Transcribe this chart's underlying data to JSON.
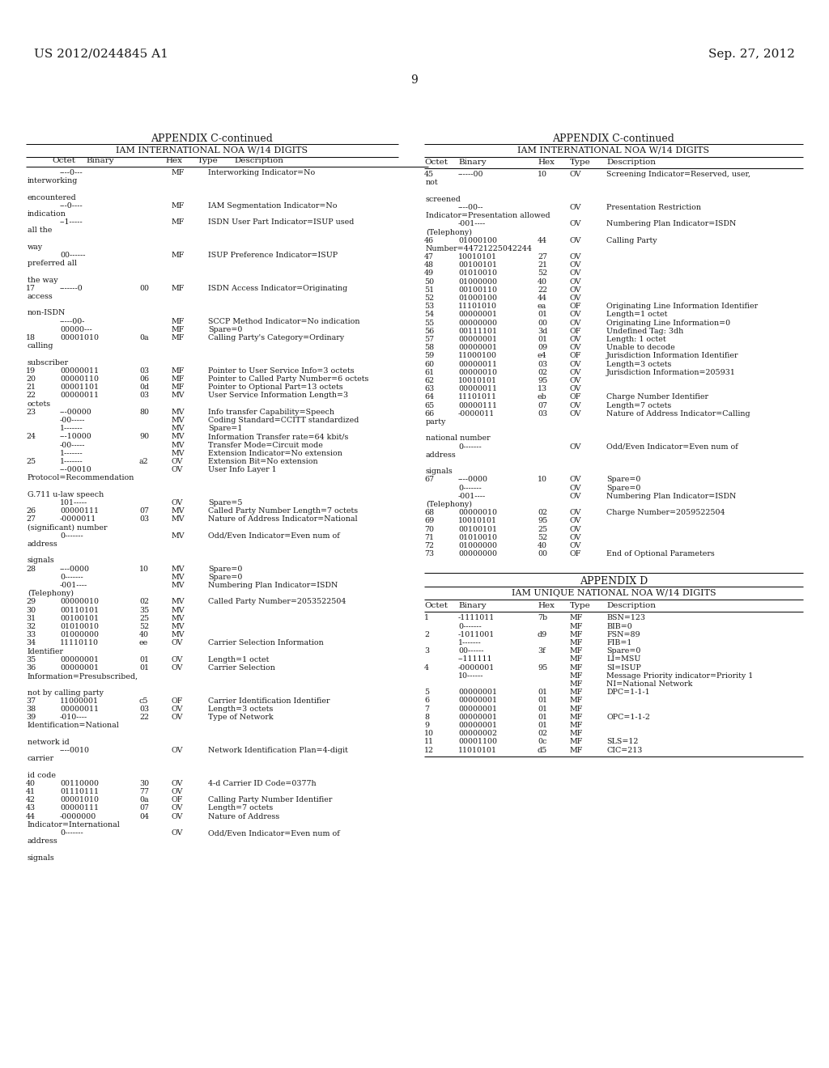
{
  "background_color": "#ffffff",
  "header_left": "US 2012/0244845 A1",
  "header_right": "Sep. 27, 2012",
  "page_number": "9",
  "left_title": "APPENDIX C-continued",
  "left_subtitle": "IAM INTERNATIONAL NOA W/14 DIGITS",
  "right_title": "APPENDIX C-continued",
  "right_subtitle": "IAM INTERNATIONAL NOA W/14 DIGITS",
  "bottom_title": "APPENDIX D",
  "bottom_subtitle": "IAM UNIQUE NATIONAL NOA W/14 DIGITS",
  "col_headers": [
    "Octet",
    "Binary",
    "Hex",
    "Type",
    "Description"
  ],
  "left_rows": [
    {
      "octet": "",
      "binary": "----0---",
      "hex": "",
      "type": "MF",
      "desc": "Interworking Indicator=No",
      "cont": "interworking"
    },
    {
      "octet": "",
      "binary": "",
      "hex": "",
      "type": "",
      "desc": "",
      "cont": "encountered"
    },
    {
      "octet": "",
      "binary": "---0----",
      "hex": "",
      "type": "MF",
      "desc": "IAM Segmentation Indicator=No",
      "cont": "indication"
    },
    {
      "octet": "",
      "binary": "--1-----",
      "hex": "",
      "type": "MF",
      "desc": "ISDN User Part Indicator=ISUP used",
      "cont": "all the"
    },
    {
      "octet": "",
      "binary": "",
      "hex": "",
      "type": "",
      "desc": "",
      "cont": "way"
    },
    {
      "octet": "",
      "binary": "00------",
      "hex": "",
      "type": "MF",
      "desc": "ISUP Preference Indicator=ISUP",
      "cont": "preferred all"
    },
    {
      "octet": "",
      "binary": "",
      "hex": "",
      "type": "",
      "desc": "",
      "cont": "the way"
    },
    {
      "octet": "17",
      "binary": "-------0",
      "hex": "00",
      "type": "MF",
      "desc": "ISDN Access Indicator=Originating",
      "cont": "access"
    },
    {
      "octet": "",
      "binary": "",
      "hex": "",
      "type": "",
      "desc": "",
      "cont": "non-ISDN"
    },
    {
      "octet": "",
      "binary": "-----00-",
      "hex": "",
      "type": "MF",
      "desc": "SCCP Method Indicator=No indication",
      "cont": ""
    },
    {
      "octet": "",
      "binary": "00000---",
      "hex": "",
      "type": "MF",
      "desc": "Spare=0",
      "cont": ""
    },
    {
      "octet": "18",
      "binary": "00001010",
      "hex": "0a",
      "type": "MF",
      "desc": "Calling Party's Category=Ordinary",
      "cont": "calling"
    },
    {
      "octet": "",
      "binary": "",
      "hex": "",
      "type": "",
      "desc": "",
      "cont": "subscriber"
    },
    {
      "octet": "19",
      "binary": "00000011",
      "hex": "03",
      "type": "MF",
      "desc": "Pointer to User Service Info=3 octets",
      "cont": ""
    },
    {
      "octet": "20",
      "binary": "00000110",
      "hex": "06",
      "type": "MF",
      "desc": "Pointer to Called Party Number=6 octets",
      "cont": ""
    },
    {
      "octet": "21",
      "binary": "00001101",
      "hex": "0d",
      "type": "MF",
      "desc": "Pointer to Optional Part=13 octets",
      "cont": ""
    },
    {
      "octet": "22",
      "binary": "00000011",
      "hex": "03",
      "type": "MV",
      "desc": "User Service Information Length=3",
      "cont": "octets"
    },
    {
      "octet": "23",
      "binary": "---00000",
      "hex": "80",
      "type": "MV",
      "desc": "Info transfer Capability=Speech",
      "cont": ""
    },
    {
      "octet": "",
      "binary": "-00-----",
      "hex": "",
      "type": "MV",
      "desc": "Coding Standard=CCITT standardized",
      "cont": ""
    },
    {
      "octet": "",
      "binary": "1-------",
      "hex": "",
      "type": "MV",
      "desc": "Spare=1",
      "cont": ""
    },
    {
      "octet": "24",
      "binary": "---10000",
      "hex": "90",
      "type": "MV",
      "desc": "Information Transfer rate=64 kbit/s",
      "cont": ""
    },
    {
      "octet": "",
      "binary": "-00-----",
      "hex": "",
      "type": "MV",
      "desc": "Transfer Mode=Circuit mode",
      "cont": ""
    },
    {
      "octet": "",
      "binary": "1-------",
      "hex": "",
      "type": "MV",
      "desc": "Extension Indicator=No extension",
      "cont": ""
    },
    {
      "octet": "25",
      "binary": "1-------",
      "hex": "a2",
      "type": "OV",
      "desc": "Extension Bit=No extension",
      "cont": ""
    },
    {
      "octet": "",
      "binary": "---00010",
      "hex": "",
      "type": "OV",
      "desc": "User Info Layer 1",
      "cont": "Protocol=Recommendation"
    },
    {
      "octet": "",
      "binary": "",
      "hex": "",
      "type": "",
      "desc": "",
      "cont": "G.711 u-law speech"
    },
    {
      "octet": "",
      "binary": "101-----",
      "hex": "",
      "type": "OV",
      "desc": "Spare=5",
      "cont": ""
    },
    {
      "octet": "26",
      "binary": "00000111",
      "hex": "07",
      "type": "MV",
      "desc": "Called Party Number Length=7 octets",
      "cont": ""
    },
    {
      "octet": "27",
      "binary": "-0000011",
      "hex": "03",
      "type": "MV",
      "desc": "Nature of Address Indicator=National",
      "cont": "(significant) number"
    },
    {
      "octet": "",
      "binary": "0-------",
      "hex": "",
      "type": "MV",
      "desc": "Odd/Even Indicator=Even num of",
      "cont": "address"
    },
    {
      "octet": "",
      "binary": "",
      "hex": "",
      "type": "",
      "desc": "",
      "cont": "signals"
    },
    {
      "octet": "28",
      "binary": "----0000",
      "hex": "10",
      "type": "MV",
      "desc": "Spare=0",
      "cont": ""
    },
    {
      "octet": "",
      "binary": "0-------",
      "hex": "",
      "type": "MV",
      "desc": "Spare=0",
      "cont": ""
    },
    {
      "octet": "",
      "binary": "-001----",
      "hex": "",
      "type": "MV",
      "desc": "Numbering Plan Indicator=ISDN",
      "cont": "(Telephony)"
    },
    {
      "octet": "29",
      "binary": "00000010",
      "hex": "02",
      "type": "MV",
      "desc": "Called Party Number=2053522504",
      "cont": ""
    },
    {
      "octet": "30",
      "binary": "00110101",
      "hex": "35",
      "type": "MV",
      "desc": "",
      "cont": ""
    },
    {
      "octet": "31",
      "binary": "00100101",
      "hex": "25",
      "type": "MV",
      "desc": "",
      "cont": ""
    },
    {
      "octet": "32",
      "binary": "01010010",
      "hex": "52",
      "type": "MV",
      "desc": "",
      "cont": ""
    },
    {
      "octet": "33",
      "binary": "01000000",
      "hex": "40",
      "type": "MV",
      "desc": "",
      "cont": ""
    },
    {
      "octet": "34",
      "binary": "11110110",
      "hex": "ee",
      "type": "OV",
      "desc": "Carrier Selection Information",
      "cont": "Identifier"
    },
    {
      "octet": "35",
      "binary": "00000001",
      "hex": "01",
      "type": "OV",
      "desc": "Length=1 octet",
      "cont": ""
    },
    {
      "octet": "36",
      "binary": "00000001",
      "hex": "01",
      "type": "OV",
      "desc": "Carrier Selection",
      "cont": "Information=Presubscribed,"
    },
    {
      "octet": "",
      "binary": "",
      "hex": "",
      "type": "",
      "desc": "",
      "cont": "not by calling party"
    },
    {
      "octet": "37",
      "binary": "11000001",
      "hex": "c5",
      "type": "OF",
      "desc": "Carrier Identification Identifier",
      "cont": ""
    },
    {
      "octet": "38",
      "binary": "00000011",
      "hex": "03",
      "type": "OV",
      "desc": "Length=3 octets",
      "cont": ""
    },
    {
      "octet": "39",
      "binary": "-010----",
      "hex": "22",
      "type": "OV",
      "desc": "Type of Network",
      "cont": "Identification=National"
    },
    {
      "octet": "",
      "binary": "",
      "hex": "",
      "type": "",
      "desc": "",
      "cont": "network id"
    },
    {
      "octet": "",
      "binary": "----0010",
      "hex": "",
      "type": "OV",
      "desc": "Network Identification Plan=4-digit",
      "cont": "carrier"
    },
    {
      "octet": "",
      "binary": "",
      "hex": "",
      "type": "",
      "desc": "",
      "cont": "id code"
    },
    {
      "octet": "40",
      "binary": "00110000",
      "hex": "30",
      "type": "OV",
      "desc": "4-d Carrier ID Code=0377h",
      "cont": ""
    },
    {
      "octet": "41",
      "binary": "01110111",
      "hex": "77",
      "type": "OV",
      "desc": "",
      "cont": ""
    },
    {
      "octet": "42",
      "binary": "00001010",
      "hex": "0a",
      "type": "OF",
      "desc": "Calling Party Number Identifier",
      "cont": ""
    },
    {
      "octet": "43",
      "binary": "00000111",
      "hex": "07",
      "type": "OV",
      "desc": "Length=7 octets",
      "cont": ""
    },
    {
      "octet": "44",
      "binary": "-0000000",
      "hex": "04",
      "type": "OV",
      "desc": "Nature of Address",
      "cont": "Indicator=International"
    },
    {
      "octet": "",
      "binary": "0-------",
      "hex": "",
      "type": "OV",
      "desc": "Odd/Even Indicator=Even num of",
      "cont": "address"
    },
    {
      "octet": "",
      "binary": "",
      "hex": "",
      "type": "",
      "desc": "",
      "cont": "signals"
    }
  ],
  "right_rows": [
    {
      "octet": "45",
      "binary": "------00",
      "hex": "10",
      "type": "OV",
      "desc": "Screening Indicator=Reserved, user,",
      "cont": "not"
    },
    {
      "octet": "",
      "binary": "",
      "hex": "",
      "type": "",
      "desc": "",
      "cont": "screened"
    },
    {
      "octet": "",
      "binary": "----00--",
      "hex": "",
      "type": "OV",
      "desc": "Presentation Restriction",
      "cont": "Indicator=Presentation allowed"
    },
    {
      "octet": "",
      "binary": "-001----",
      "hex": "",
      "type": "OV",
      "desc": "Numbering Plan Indicator=ISDN",
      "cont": "(Telephony)"
    },
    {
      "octet": "46",
      "binary": "01000100",
      "hex": "44",
      "type": "OV",
      "desc": "Calling Party",
      "cont": "Number=44721225042244"
    },
    {
      "octet": "47",
      "binary": "10010101",
      "hex": "27",
      "type": "OV",
      "desc": "",
      "cont": ""
    },
    {
      "octet": "48",
      "binary": "00100101",
      "hex": "21",
      "type": "OV",
      "desc": "",
      "cont": ""
    },
    {
      "octet": "49",
      "binary": "01010010",
      "hex": "52",
      "type": "OV",
      "desc": "",
      "cont": ""
    },
    {
      "octet": "50",
      "binary": "01000000",
      "hex": "40",
      "type": "OV",
      "desc": "",
      "cont": ""
    },
    {
      "octet": "51",
      "binary": "00100110",
      "hex": "22",
      "type": "OV",
      "desc": "",
      "cont": ""
    },
    {
      "octet": "52",
      "binary": "01000100",
      "hex": "44",
      "type": "OV",
      "desc": "",
      "cont": ""
    },
    {
      "octet": "53",
      "binary": "11101010",
      "hex": "ea",
      "type": "OF",
      "desc": "Originating Line Information Identifier",
      "cont": ""
    },
    {
      "octet": "54",
      "binary": "00000001",
      "hex": "01",
      "type": "OV",
      "desc": "Length=1 octet",
      "cont": ""
    },
    {
      "octet": "55",
      "binary": "00000000",
      "hex": "00",
      "type": "OV",
      "desc": "Originating Line Information=0",
      "cont": ""
    },
    {
      "octet": "56",
      "binary": "00111101",
      "hex": "3d",
      "type": "OF",
      "desc": "Undefined Tag: 3dh",
      "cont": ""
    },
    {
      "octet": "57",
      "binary": "00000001",
      "hex": "01",
      "type": "OV",
      "desc": "Length: 1 octet",
      "cont": ""
    },
    {
      "octet": "58",
      "binary": "00000001",
      "hex": "09",
      "type": "OV",
      "desc": "Unable to decode",
      "cont": ""
    },
    {
      "octet": "59",
      "binary": "11000100",
      "hex": "e4",
      "type": "OF",
      "desc": "Jurisdiction Information Identifier",
      "cont": ""
    },
    {
      "octet": "60",
      "binary": "00000011",
      "hex": "03",
      "type": "OV",
      "desc": "Length=3 octets",
      "cont": ""
    },
    {
      "octet": "61",
      "binary": "00000010",
      "hex": "02",
      "type": "OV",
      "desc": "Jurisdiction Information=205931",
      "cont": ""
    },
    {
      "octet": "62",
      "binary": "10010101",
      "hex": "95",
      "type": "OV",
      "desc": "",
      "cont": ""
    },
    {
      "octet": "63",
      "binary": "00000011",
      "hex": "13",
      "type": "OV",
      "desc": "",
      "cont": ""
    },
    {
      "octet": "64",
      "binary": "11101011",
      "hex": "eb",
      "type": "OF",
      "desc": "Charge Number Identifier",
      "cont": ""
    },
    {
      "octet": "65",
      "binary": "00000111",
      "hex": "07",
      "type": "OV",
      "desc": "Length=7 octets",
      "cont": ""
    },
    {
      "octet": "66",
      "binary": "-0000011",
      "hex": "03",
      "type": "OV",
      "desc": "Nature of Address Indicator=Calling",
      "cont": "party"
    },
    {
      "octet": "",
      "binary": "",
      "hex": "",
      "type": "",
      "desc": "",
      "cont": "national number"
    },
    {
      "octet": "",
      "binary": "0-------",
      "hex": "",
      "type": "OV",
      "desc": "Odd/Even Indicator=Even num of",
      "cont": "address"
    },
    {
      "octet": "",
      "binary": "",
      "hex": "",
      "type": "",
      "desc": "",
      "cont": "signals"
    },
    {
      "octet": "67",
      "binary": "----0000",
      "hex": "10",
      "type": "OV",
      "desc": "Spare=0",
      "cont": ""
    },
    {
      "octet": "",
      "binary": "0-------",
      "hex": "",
      "type": "OV",
      "desc": "Spare=0",
      "cont": ""
    },
    {
      "octet": "",
      "binary": "-001----",
      "hex": "",
      "type": "OV",
      "desc": "Numbering Plan Indicator=ISDN",
      "cont": "(Telephony)"
    },
    {
      "octet": "68",
      "binary": "00000010",
      "hex": "02",
      "type": "OV",
      "desc": "Charge Number=2059522504",
      "cont": ""
    },
    {
      "octet": "69",
      "binary": "10010101",
      "hex": "95",
      "type": "OV",
      "desc": "",
      "cont": ""
    },
    {
      "octet": "70",
      "binary": "00100101",
      "hex": "25",
      "type": "OV",
      "desc": "",
      "cont": ""
    },
    {
      "octet": "71",
      "binary": "01010010",
      "hex": "52",
      "type": "OV",
      "desc": "",
      "cont": ""
    },
    {
      "octet": "72",
      "binary": "01000000",
      "hex": "40",
      "type": "OV",
      "desc": "",
      "cont": ""
    },
    {
      "octet": "73",
      "binary": "00000000",
      "hex": "00",
      "type": "OF",
      "desc": "End of Optional Parameters",
      "cont": ""
    }
  ],
  "bottom_rows": [
    {
      "octet": "1",
      "binary": "-1111011",
      "hex": "7b",
      "type": "MF",
      "desc": "BSN=123",
      "cont": ""
    },
    {
      "octet": "",
      "binary": "0-------",
      "hex": "",
      "type": "MF",
      "desc": "BIB=0",
      "cont": ""
    },
    {
      "octet": "2",
      "binary": "-1011001",
      "hex": "d9",
      "type": "MF",
      "desc": "FSN=89",
      "cont": ""
    },
    {
      "octet": "",
      "binary": "1-------",
      "hex": "",
      "type": "MF",
      "desc": "FIB=1",
      "cont": ""
    },
    {
      "octet": "3",
      "binary": "00------",
      "hex": "3f",
      "type": "MF",
      "desc": "Spare=0",
      "cont": ""
    },
    {
      "octet": "",
      "binary": "--111111",
      "hex": "",
      "type": "MF",
      "desc": "LI=MSU",
      "cont": ""
    },
    {
      "octet": "4",
      "binary": "-0000001",
      "hex": "95",
      "type": "MF",
      "desc": "SI=ISUP",
      "cont": ""
    },
    {
      "octet": "",
      "binary": "10------",
      "hex": "",
      "type": "MF",
      "desc": "Message Priority indicator=Priority 1",
      "cont": ""
    },
    {
      "octet": "",
      "binary": "",
      "hex": "",
      "type": "MF",
      "desc": "NI=National Network",
      "cont": ""
    },
    {
      "octet": "5",
      "binary": "00000001",
      "hex": "01",
      "type": "MF",
      "desc": "DPC=1-1-1",
      "cont": ""
    },
    {
      "octet": "6",
      "binary": "00000001",
      "hex": "01",
      "type": "MF",
      "desc": "",
      "cont": ""
    },
    {
      "octet": "7",
      "binary": "00000001",
      "hex": "01",
      "type": "MF",
      "desc": "",
      "cont": ""
    },
    {
      "octet": "8",
      "binary": "00000001",
      "hex": "01",
      "type": "MF",
      "desc": "OPC=1-1-2",
      "cont": ""
    },
    {
      "octet": "9",
      "binary": "00000001",
      "hex": "01",
      "type": "MF",
      "desc": "",
      "cont": ""
    },
    {
      "octet": "10",
      "binary": "00000002",
      "hex": "02",
      "type": "MF",
      "desc": "",
      "cont": ""
    },
    {
      "octet": "11",
      "binary": "00001100",
      "hex": "0c",
      "type": "MF",
      "desc": "SLS=12",
      "cont": ""
    },
    {
      "octet": "12",
      "binary": "11010101",
      "hex": "d5",
      "type": "MF",
      "desc": "CIC=213",
      "cont": ""
    }
  ]
}
